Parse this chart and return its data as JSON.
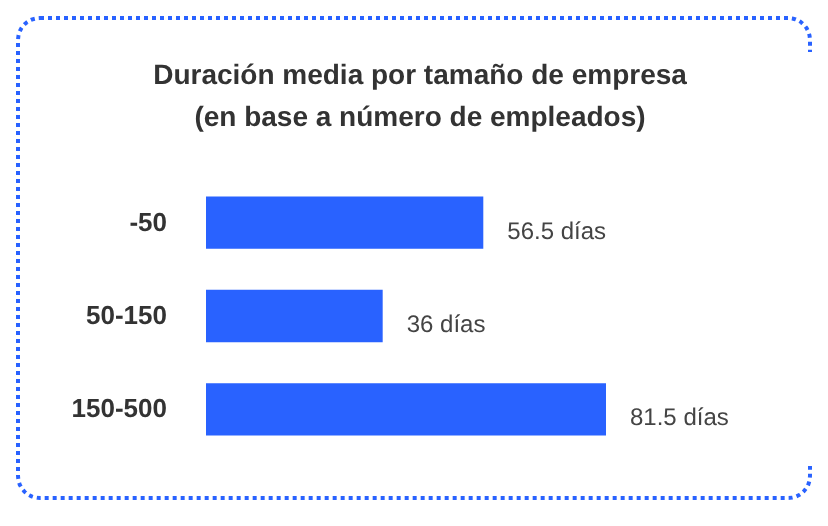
{
  "chart_data": {
    "type": "bar",
    "orientation": "horizontal",
    "title": "Duración media por tamaño de empresa\n(en base a número de empleados)",
    "categories": [
      "-50",
      "50-150",
      "150-500"
    ],
    "values": [
      56.5,
      36,
      81.5
    ],
    "value_labels": [
      "56.5 días",
      "36 días",
      "81.5 días"
    ],
    "color": "#2962ff"
  }
}
